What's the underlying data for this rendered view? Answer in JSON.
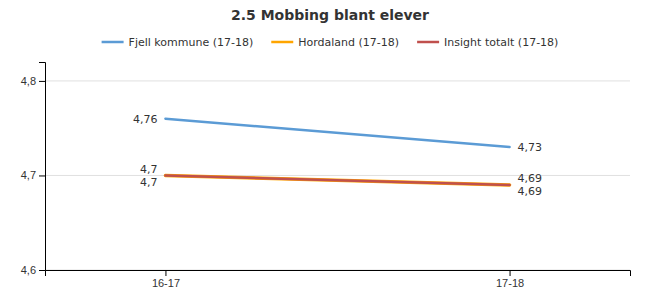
{
  "chart_data": {
    "type": "line",
    "title": "2.5 Mobbing blant elever",
    "categories": [
      "16-17",
      "17-18"
    ],
    "series": [
      {
        "name": "Fjell kommune (17-18)",
        "color": "#5B9BD5",
        "values": [
          4.76,
          4.73
        ],
        "value_labels": [
          "4,76",
          "4,73"
        ]
      },
      {
        "name": "Hordaland (17-18)",
        "color": "#FFA500",
        "values": [
          4.7,
          4.69
        ],
        "value_labels": [
          "4,7",
          "4,69"
        ]
      },
      {
        "name": "Insight totalt (17-18)",
        "color": "#C0504D",
        "values": [
          4.7,
          4.69
        ],
        "value_labels": [
          "4,7",
          "4,69"
        ]
      }
    ],
    "ylim": [
      4.6,
      4.82
    ],
    "yticks": [
      {
        "value": 4.6,
        "label": "4,6"
      },
      {
        "value": 4.7,
        "label": "4,7"
      },
      {
        "value": 4.8,
        "label": "4,8"
      }
    ],
    "grid": true,
    "legend": "top",
    "data_labels": true
  }
}
